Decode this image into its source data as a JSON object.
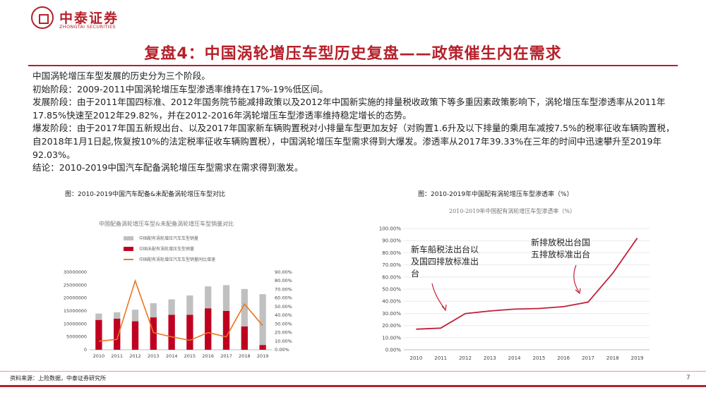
{
  "header": {
    "brand_cn": "中泰证券",
    "brand_en": "ZHONGTAI SECURITIES",
    "title": "复盘4：中国涡轮增压车型历史复盘——政策催生内在需求"
  },
  "body": {
    "lines": [
      "中国涡轮增压车型发展的历史分为三个阶段。",
      "初始阶段：2009-2011中国涡轮增压车型渗透率维持在17%-19%低区间。",
      "发展阶段：由于2011年国四标准、2012年国务院节能减排政策以及2012年中国新实施的排量税收政策下等多重因素政策影响下，涡轮增压车型渗透率从2011年17.85%快速至2012年29.82%，并在2012-2016年涡轮增压车型渗透率维持稳定增长的态势。",
      "爆发阶段：由于2017年国五新规出台、以及2017年国家新车辆购置税对小排量车型更加友好（对购置1.6升及以下排量的乘用车减按7.5%的税率征收车辆购置税，自2018年1月1日起,恢复按10%的法定税率征收车辆购置税），中国涡轮增压车型需求得到大爆发。渗透率从2017年39.33%在三年的时间中迅速攀升至2019年92.03%。",
      "结论：2010-2019中国汽车配备涡轮增压车型需求在需求得到激发。"
    ]
  },
  "left_figure": {
    "caption": "图：2010-2019中国汽车配备&未配备涡轮增压车型对比",
    "chart_title": "中国配备涡轮增压车型&未配备涡轮增压车型销量对比",
    "legend": [
      "中国配有涡轮增压汽车车型销量",
      "中国未配有涡轮增压车型销量",
      "中国配有涡轮增压汽车车型销量同比增速"
    ],
    "colors": {
      "equipped": "#c0c0c0",
      "not_equipped": "#c00020",
      "growth": "#e87722"
    }
  },
  "right_figure": {
    "caption": "图：2010-2019年中国配有涡轮增压车型渗透率（%）",
    "chart_title": "2010-2019年中国配有涡轮增压车型渗透率（%）",
    "annotation_1": [
      "新车船税法出台以",
      "及国四排放标准出",
      "台"
    ],
    "annotation_2": [
      "新排放税出台国",
      "五排放标准出台"
    ],
    "colors": {
      "line": "#c0203a"
    }
  },
  "chart_data": [
    {
      "type": "bar",
      "title": "中国配备涡轮增压车型&未配备涡轮增压车型销量对比",
      "categories": [
        "2010",
        "2011",
        "2012",
        "2013",
        "2014",
        "2015",
        "2016",
        "2017",
        "2018",
        "2019"
      ],
      "series": [
        {
          "name": "中国配有涡轮增压汽车车型销量",
          "kind": "stacked-total",
          "values": [
            14000000,
            14500000,
            15500000,
            18000000,
            19500000,
            21000000,
            24500000,
            25000000,
            23500000,
            21500000
          ]
        },
        {
          "name": "中国未配有涡轮增压车型销量",
          "kind": "bar",
          "values": [
            11500000,
            12000000,
            11000000,
            12500000,
            13500000,
            13500000,
            16000000,
            15000000,
            9000000,
            1800000
          ]
        },
        {
          "name": "中国配有涡轮增压汽车车型销量同比增速",
          "kind": "line",
          "axis": "right",
          "values": [
            10,
            12,
            80,
            20,
            15,
            11,
            20,
            15,
            53,
            28
          ]
        }
      ],
      "y_left": {
        "ticks": [
          "0",
          "5000000",
          "10000000",
          "15000000",
          "20000000",
          "25000000",
          "30000000"
        ],
        "ylim": [
          0,
          30000000
        ]
      },
      "y_right": {
        "ticks": [
          "0.00%",
          "10.00%",
          "20.00%",
          "30.00%",
          "40.00%",
          "50.00%",
          "60.00%",
          "70.00%",
          "80.00%",
          "90.00%"
        ],
        "ylim": [
          0,
          90
        ]
      }
    },
    {
      "type": "line",
      "title": "2010-2019年中国配有涡轮增压车型渗透率（%）",
      "x": [
        "2010",
        "2011",
        "2012",
        "2013",
        "2014",
        "2015",
        "2016",
        "2017",
        "2018",
        "2019"
      ],
      "series": [
        {
          "values": [
            17,
            17.85,
            29.82,
            32,
            33.5,
            34,
            35.5,
            39.33,
            63,
            92.03
          ]
        }
      ],
      "y_ticks": [
        "0.00%",
        "10.00%",
        "20.00%",
        "30.00%",
        "40.00%",
        "50.00%",
        "60.00%",
        "70.00%",
        "80.00%",
        "90.00%",
        "100.00%"
      ],
      "ylim": [
        0,
        100
      ]
    }
  ],
  "footer": {
    "source": "资料来源：上险数据，中泰证券研究所",
    "page": "7"
  }
}
